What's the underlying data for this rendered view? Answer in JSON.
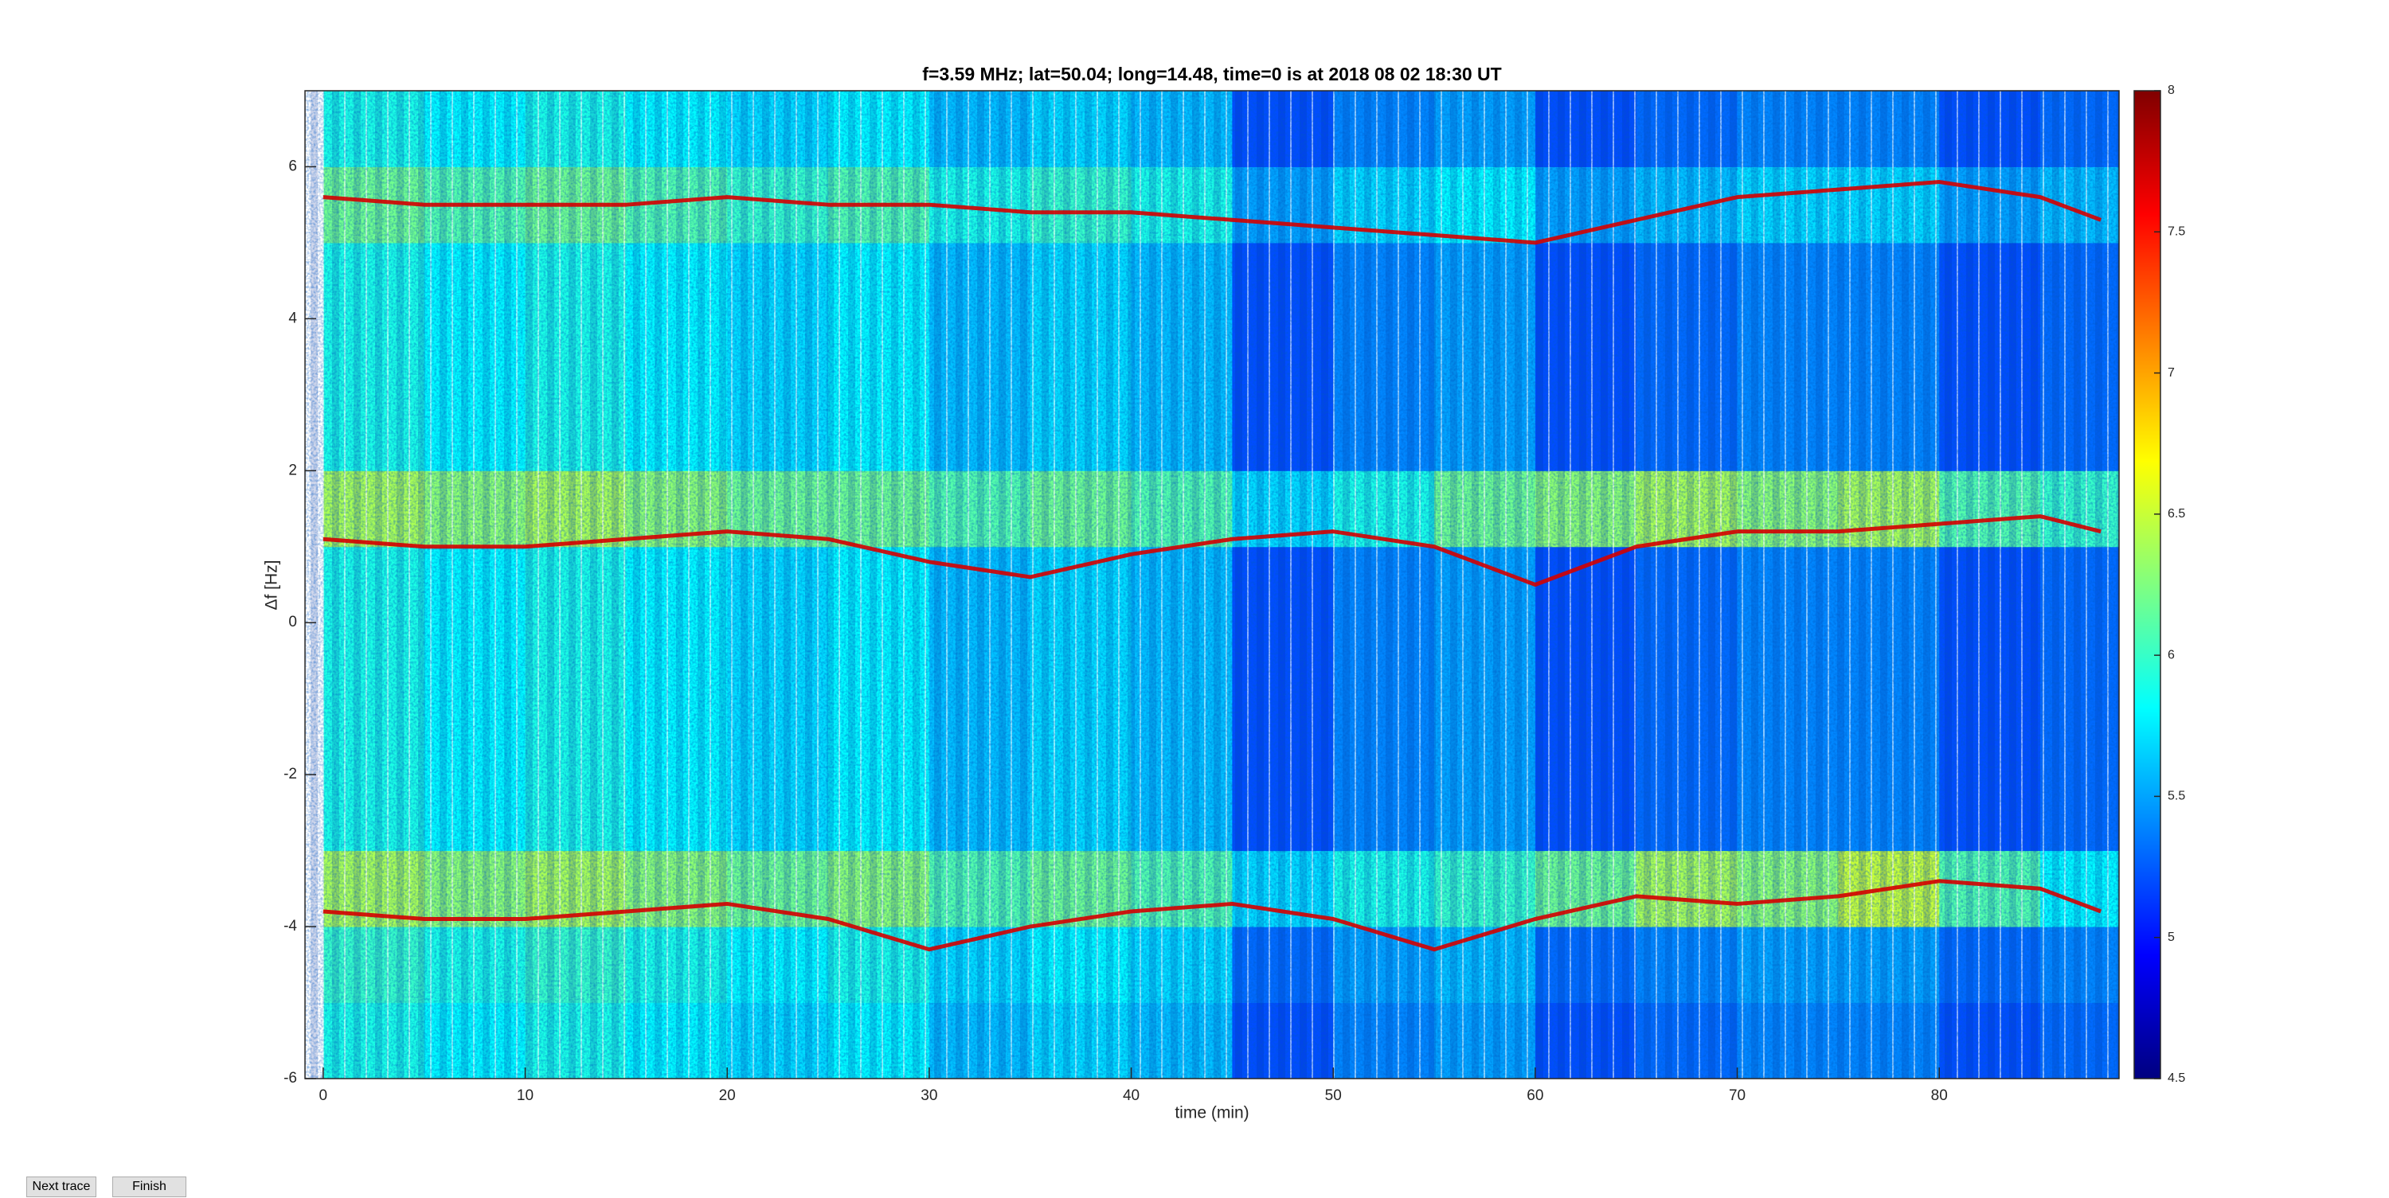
{
  "chart_data": {
    "type": "heatmap",
    "title": "f=3.59 MHz;  lat=50.04; long=14.48, time=0 is at 2018 08 02 18:30 UT",
    "x_label": "time (min)",
    "y_label": "Δf [Hz]",
    "xlim": [
      -0.9,
      88.9
    ],
    "ylim": [
      -6,
      7
    ],
    "xticks": [
      0,
      10,
      20,
      30,
      40,
      50,
      60,
      70,
      80
    ],
    "yticks": [
      -6,
      -4,
      -2,
      0,
      2,
      4,
      6
    ],
    "clim": [
      4.5,
      8
    ],
    "cticks": [
      4.5,
      5,
      5.5,
      6,
      6.5,
      7,
      7.5,
      8
    ],
    "colormap": "jet",
    "x": [
      0,
      5,
      10,
      15,
      20,
      25,
      30,
      35,
      40,
      45,
      50,
      55,
      60,
      65,
      70,
      75,
      80,
      85
    ],
    "y": [
      -6,
      -5,
      -4,
      -3,
      -2,
      -1,
      0,
      1,
      2,
      3,
      4,
      5,
      6
    ],
    "z": [
      [
        5.9,
        5.8,
        5.9,
        5.8,
        5.7,
        5.8,
        5.6,
        5.7,
        5.6,
        5.2,
        5.4,
        5.5,
        5.2,
        5.3,
        5.4,
        5.4,
        5.2,
        5.3
      ],
      [
        6.0,
        5.9,
        6.0,
        5.9,
        5.8,
        5.9,
        5.7,
        5.8,
        5.7,
        5.3,
        5.5,
        5.6,
        5.3,
        5.4,
        5.5,
        5.5,
        5.3,
        5.4
      ],
      [
        6.4,
        6.3,
        6.4,
        6.3,
        6.2,
        6.3,
        6.1,
        6.2,
        6.1,
        5.7,
        5.9,
        6.0,
        6.2,
        6.4,
        6.3,
        6.5,
        6.1,
        5.8
      ],
      [
        5.9,
        5.8,
        5.9,
        5.8,
        5.7,
        5.8,
        5.6,
        5.7,
        5.6,
        5.2,
        5.4,
        5.5,
        5.2,
        5.3,
        5.4,
        5.4,
        5.2,
        5.3
      ],
      [
        5.9,
        5.8,
        5.9,
        5.8,
        5.7,
        5.8,
        5.6,
        5.7,
        5.6,
        5.2,
        5.4,
        5.5,
        5.2,
        5.3,
        5.4,
        5.4,
        5.2,
        5.3
      ],
      [
        5.9,
        5.8,
        5.9,
        5.8,
        5.7,
        5.8,
        5.6,
        5.7,
        5.6,
        5.2,
        5.4,
        5.5,
        5.2,
        5.3,
        5.4,
        5.4,
        5.2,
        5.3
      ],
      [
        5.9,
        5.8,
        5.9,
        5.8,
        5.7,
        5.8,
        5.6,
        5.7,
        5.6,
        5.2,
        5.4,
        5.5,
        5.2,
        5.3,
        5.4,
        5.4,
        5.2,
        5.3
      ],
      [
        6.4,
        6.3,
        6.4,
        6.3,
        6.2,
        6.2,
        6.1,
        6.2,
        6.1,
        5.7,
        5.9,
        6.2,
        6.3,
        6.4,
        6.3,
        6.4,
        6.1,
        6.0
      ],
      [
        5.9,
        5.8,
        5.9,
        5.8,
        5.7,
        5.8,
        5.6,
        5.7,
        5.6,
        5.2,
        5.4,
        5.5,
        5.2,
        5.3,
        5.4,
        5.4,
        5.2,
        5.3
      ],
      [
        5.9,
        5.8,
        5.9,
        5.8,
        5.7,
        5.8,
        5.6,
        5.7,
        5.6,
        5.2,
        5.4,
        5.5,
        5.2,
        5.3,
        5.4,
        5.4,
        5.2,
        5.3
      ],
      [
        5.9,
        5.8,
        5.9,
        5.8,
        5.7,
        5.8,
        5.6,
        5.7,
        5.6,
        5.2,
        5.4,
        5.5,
        5.2,
        5.3,
        5.4,
        5.4,
        5.2,
        5.3
      ],
      [
        6.2,
        6.1,
        6.2,
        6.1,
        6.0,
        6.1,
        5.9,
        6.0,
        5.9,
        5.5,
        5.7,
        5.8,
        5.5,
        5.6,
        5.7,
        5.7,
        5.5,
        5.6
      ],
      [
        5.9,
        5.8,
        5.9,
        5.8,
        5.7,
        5.8,
        5.6,
        5.7,
        5.6,
        5.2,
        5.4,
        5.5,
        5.2,
        5.3,
        5.4,
        5.4,
        5.2,
        5.3
      ]
    ],
    "traces": {
      "x": [
        0,
        5,
        10,
        15,
        20,
        25,
        30,
        35,
        40,
        45,
        50,
        55,
        60,
        65,
        70,
        75,
        80,
        85,
        88
      ],
      "series": [
        {
          "color": "#d40000",
          "values": [
            5.6,
            5.5,
            5.5,
            5.5,
            5.6,
            5.5,
            5.5,
            5.4,
            5.4,
            5.3,
            5.2,
            5.1,
            5.0,
            5.3,
            5.6,
            5.7,
            5.8,
            5.6,
            5.3
          ]
        },
        {
          "color": "#d40000",
          "values": [
            1.1,
            1.0,
            1.0,
            1.1,
            1.2,
            1.1,
            0.8,
            0.6,
            0.9,
            1.1,
            1.2,
            1.0,
            0.5,
            1.0,
            1.2,
            1.2,
            1.3,
            1.4,
            1.2
          ]
        },
        {
          "color": "#d40000",
          "values": [
            -3.8,
            -3.9,
            -3.9,
            -3.8,
            -3.7,
            -3.9,
            -4.3,
            -4.0,
            -3.8,
            -3.7,
            -3.9,
            -4.3,
            -3.9,
            -3.6,
            -3.7,
            -3.6,
            -3.4,
            -3.5,
            -3.8
          ]
        }
      ]
    }
  },
  "buttons": [
    "Next trace",
    "Finish"
  ]
}
